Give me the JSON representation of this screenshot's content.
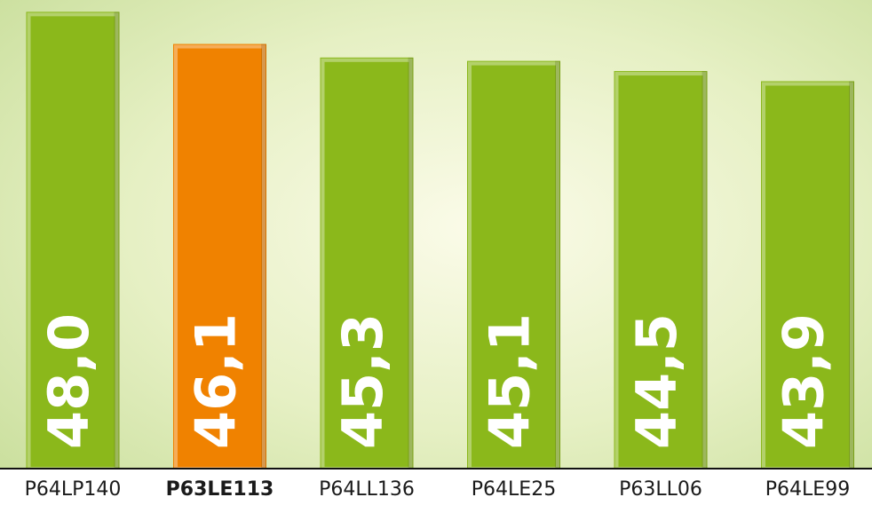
{
  "chart_data": {
    "type": "bar",
    "categories": [
      "P64LP140",
      "P63LE113",
      "P64LL136",
      "P64LE25",
      "P63LL06",
      "P64LE99"
    ],
    "values": [
      48.0,
      46.1,
      45.3,
      45.1,
      44.5,
      43.9
    ],
    "value_labels": [
      "48,0",
      "46,1",
      "45,3",
      "45,1",
      "44,5",
      "43,9"
    ],
    "colors": [
      "#8bb81b",
      "#f08200",
      "#8bb81b",
      "#8bb81b",
      "#8bb81b",
      "#8bb81b"
    ],
    "highlight_index": 1,
    "ylim": [
      21,
      48.7
    ]
  }
}
